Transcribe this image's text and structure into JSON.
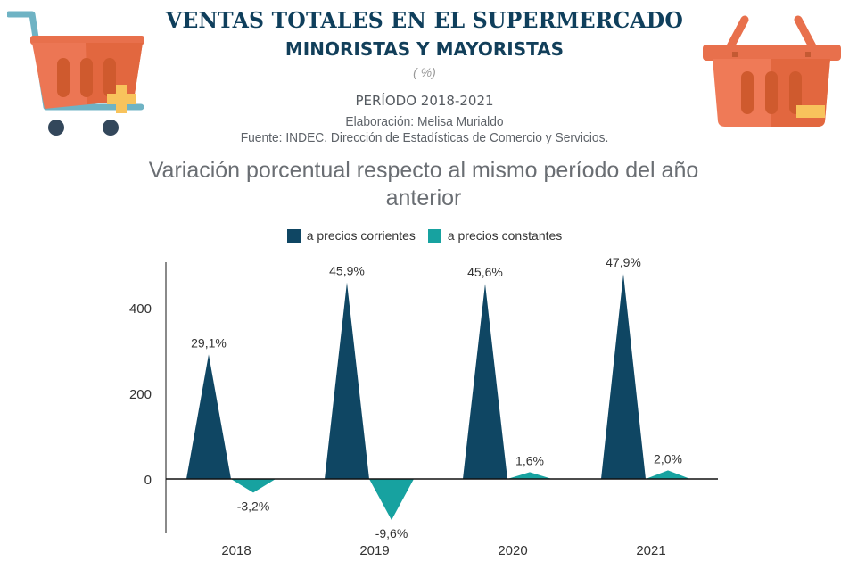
{
  "header": {
    "title": "VENTAS TOTALES EN EL SUPERMERCADO",
    "subtitle": "MINORISTAS Y MAYORISTAS",
    "unit": "( %)",
    "period": "PERÍODO 2018-2021",
    "author": "Elaboración: Melisa Murialdo",
    "source": "Fuente: INDEC. Dirección de Estadísticas de Comercio y Servicios."
  },
  "icons": {
    "left": "shopping-cart-add-icon",
    "right": "shopping-basket-icon"
  },
  "colors": {
    "corrientes": "#0f4663",
    "constantes": "#17a2a0",
    "title": "#0f3f5c"
  },
  "chart_data": {
    "type": "area",
    "title": "Variación porcentual respecto al mismo período del año anterior",
    "xlabel": "",
    "ylabel": "",
    "categories": [
      "2018",
      "2019",
      "2020",
      "2021"
    ],
    "ylim": [
      -130,
      500
    ],
    "yticks": [
      0,
      200,
      400
    ],
    "legend_position": "top-center",
    "grid": false,
    "series": [
      {
        "name": "a precios corrientes",
        "values": [
          291,
          459,
          456,
          479
        ],
        "labels": [
          "29,1%",
          "45,9%",
          "45,6%",
          "47,9%"
        ]
      },
      {
        "name": "a precios constantes",
        "values": [
          -32,
          -96,
          16,
          20
        ],
        "labels": [
          "-3,2%",
          "-9,6%",
          "1,6%",
          "2,0%"
        ]
      }
    ]
  }
}
